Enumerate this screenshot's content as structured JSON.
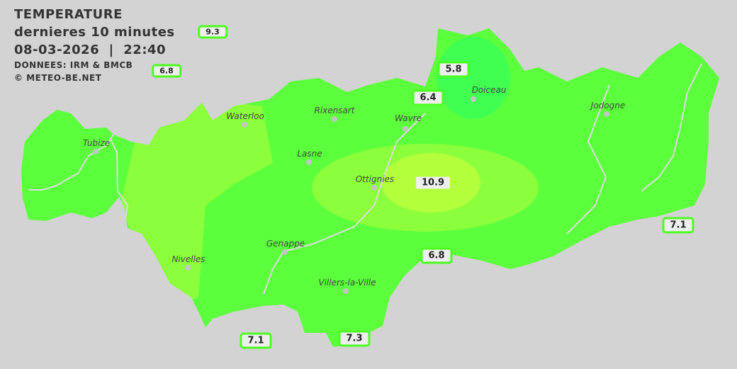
{
  "header": {
    "title": "TEMPERATURE",
    "subtitle": "dernieres 10 minutes",
    "datetime": "08-03-2026  |  22:40",
    "source": "DONNEES: IRM & BMCB",
    "copyright": "© METEO-BE.NET"
  },
  "colors": {
    "background": "#d3d3d3",
    "base": "#5cff3c",
    "warm": "#8cff3c",
    "warmest": "#b4ff3c",
    "cool": "#40ff50",
    "label_border": "#4cff20"
  },
  "cities": [
    {
      "name": "Waterloo"
    },
    {
      "name": "Rixensart"
    },
    {
      "name": "Wavre"
    },
    {
      "name": "Doiceau"
    },
    {
      "name": "Jodogne"
    },
    {
      "name": "Tubize"
    },
    {
      "name": "Lasne"
    },
    {
      "name": "Ottignies"
    },
    {
      "name": "Genappe"
    },
    {
      "name": "Nivelles"
    },
    {
      "name": "Villers-la-Ville"
    }
  ],
  "stations": [
    {
      "value": "9.3"
    },
    {
      "value": "6.8"
    },
    {
      "value": "5.8"
    },
    {
      "value": "6.4"
    },
    {
      "value": "10.9"
    },
    {
      "value": "7.1"
    },
    {
      "value": "6.8"
    },
    {
      "value": "7.1"
    },
    {
      "value": "7.3"
    }
  ]
}
